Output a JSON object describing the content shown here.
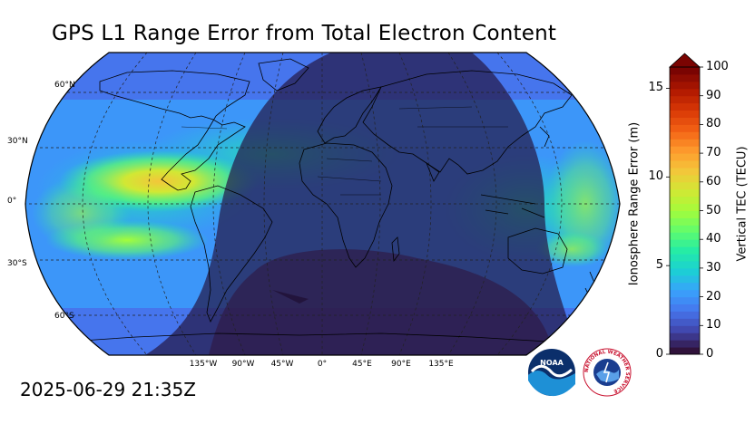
{
  "title": "GPS L1 Range Error from Total Electron Content",
  "timestamp": "2025-06-29 21:35Z",
  "map": {
    "projection": "robinson",
    "lat_labels": [
      "60°N",
      "30°N",
      "0°",
      "30°S",
      "60°S"
    ],
    "lon_labels": [
      "135°W",
      "90°W",
      "45°W",
      "0°",
      "45°E",
      "90°E",
      "135°E"
    ],
    "night_side": "east",
    "gridlines": true
  },
  "colorbar": {
    "left_label": "Ionosphere Range Error (m)",
    "right_label": "Vertical TEC (TECU)",
    "left_ticks": [
      "0",
      "5",
      "10",
      "15"
    ],
    "right_ticks": [
      "0",
      "10",
      "20",
      "30",
      "40",
      "50",
      "60",
      "70",
      "80",
      "90",
      "100"
    ],
    "tec_min": 0,
    "tec_max": 100,
    "range_error_max": 16.2,
    "extend": "max",
    "colormap": [
      "#30123b",
      "#4145ab",
      "#4675ed",
      "#39a2fc",
      "#1bcfd4",
      "#24eca6",
      "#61fc6c",
      "#a4fc3b",
      "#d1e834",
      "#f3c63a",
      "#fe9b2d",
      "#f36315",
      "#d93806",
      "#b11901",
      "#7a0402"
    ]
  },
  "logos": {
    "noaa": {
      "text": "NOAA"
    },
    "nws": {
      "text": "NATIONAL WEATHER SERVICE"
    }
  }
}
